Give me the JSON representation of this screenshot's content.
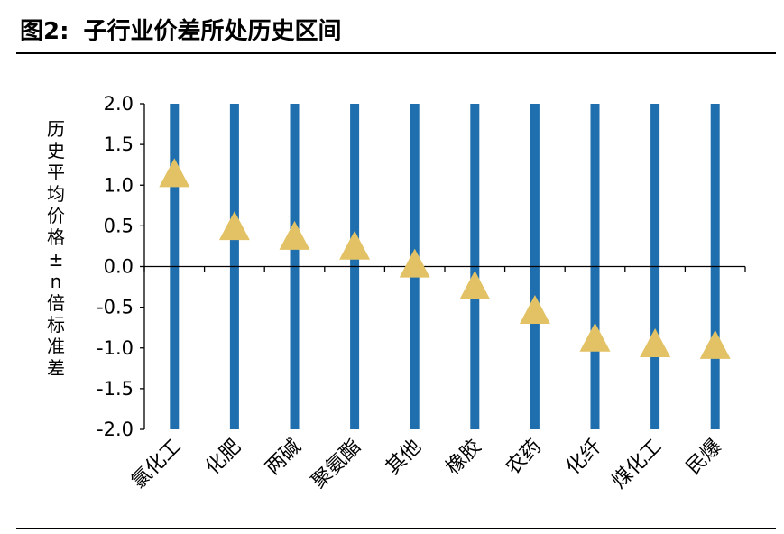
{
  "header": {
    "figure_label": "图2:",
    "title": "子行业价差所处历史区间"
  },
  "chart_data": {
    "type": "scatter",
    "title": "",
    "ylabel": "历史平均价格±n倍标准差",
    "ylim": [
      -2.0,
      2.0
    ],
    "yticks": [
      "2.0",
      "1.5",
      "1.0",
      "0.5",
      "0.0",
      "-0.5",
      "-1.0",
      "-1.5",
      "-2.0"
    ],
    "categories": [
      "氯化工",
      "化肥",
      "两碱",
      "聚氨酯",
      "其他",
      "橡胶",
      "农药",
      "化纤",
      "煤化工",
      "民爆"
    ],
    "values": [
      1.12,
      0.47,
      0.35,
      0.23,
      0.01,
      -0.26,
      -0.56,
      -0.9,
      -0.97,
      -0.99
    ],
    "range_bars": [
      -2.0,
      2.0
    ],
    "marker": "triangle",
    "colors": {
      "bar": "#1F6EAE",
      "marker": "#E2C264",
      "axis": "#000000"
    },
    "grid": false,
    "legend": "none"
  }
}
